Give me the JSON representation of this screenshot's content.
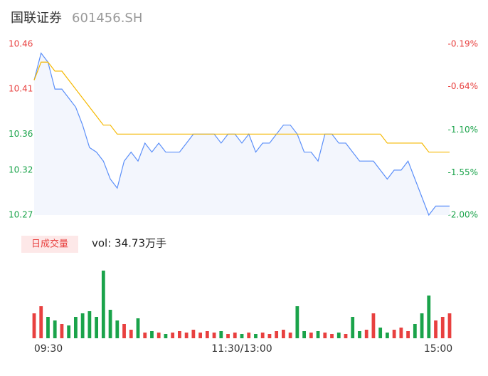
{
  "chart_data": {
    "type": "line",
    "title": "国联证券",
    "subtitle": "601456.SH",
    "categories": [
      "09:30",
      null,
      null,
      null,
      null,
      null,
      null,
      null,
      null,
      null,
      null,
      null,
      null,
      null,
      null,
      null,
      null,
      null,
      null,
      null,
      null,
      null,
      null,
      null,
      null,
      null,
      null,
      null,
      null,
      null,
      "11:30/13:00",
      null,
      null,
      null,
      null,
      null,
      null,
      null,
      null,
      null,
      null,
      null,
      null,
      null,
      null,
      null,
      null,
      null,
      null,
      null,
      null,
      null,
      null,
      null,
      null,
      null,
      null,
      null,
      null,
      null,
      "15:00"
    ],
    "series": [
      {
        "name": "price",
        "color": "#5b8ff9",
        "values": [
          10.42,
          10.45,
          10.44,
          10.41,
          10.41,
          10.4,
          10.39,
          10.37,
          10.345,
          10.34,
          10.33,
          10.31,
          10.3,
          10.33,
          10.34,
          10.33,
          10.35,
          10.34,
          10.35,
          10.34,
          10.34,
          10.34,
          10.35,
          10.36,
          10.36,
          10.36,
          10.36,
          10.35,
          10.36,
          10.36,
          10.35,
          10.36,
          10.34,
          10.35,
          10.35,
          10.36,
          10.37,
          10.37,
          10.36,
          10.34,
          10.34,
          10.33,
          10.36,
          10.36,
          10.35,
          10.35,
          10.34,
          10.33,
          10.33,
          10.33,
          10.32,
          10.31,
          10.32,
          10.32,
          10.33,
          10.31,
          10.29,
          10.27,
          10.28,
          10.28,
          10.28
        ]
      },
      {
        "name": "average",
        "color": "#f5b800",
        "values": [
          10.42,
          10.44,
          10.44,
          10.43,
          10.43,
          10.42,
          10.41,
          10.4,
          10.39,
          10.38,
          10.37,
          10.37,
          10.36,
          10.36,
          10.36,
          10.36,
          10.36,
          10.36,
          10.36,
          10.36,
          10.36,
          10.36,
          10.36,
          10.36,
          10.36,
          10.36,
          10.36,
          10.36,
          10.36,
          10.36,
          10.36,
          10.36,
          10.36,
          10.36,
          10.36,
          10.36,
          10.36,
          10.36,
          10.36,
          10.36,
          10.36,
          10.36,
          10.36,
          10.36,
          10.36,
          10.36,
          10.36,
          10.36,
          10.36,
          10.36,
          10.36,
          10.35,
          10.35,
          10.35,
          10.35,
          10.35,
          10.35,
          10.34,
          10.34,
          10.34,
          10.34
        ]
      }
    ],
    "ylim": [
      10.27,
      10.46
    ],
    "yticks": [
      10.46,
      10.41,
      10.36,
      10.32,
      10.27
    ],
    "y2lim": [
      -2.0,
      -0.19
    ],
    "y2ticks": [
      {
        "value": -0.19,
        "label": "-0.19%"
      },
      {
        "value": -0.64,
        "label": "-0.64%"
      },
      {
        "value": -1.1,
        "label": "-1.10%"
      },
      {
        "value": -1.55,
        "label": "-1.55%"
      },
      {
        "value": -2.0,
        "label": "-2.00%"
      }
    ],
    "volume": {
      "label": "日成交量",
      "summary": "vol: 34.73万手",
      "up_color": "#e8403f",
      "down_color": "#1aa34a",
      "ylim": [
        0,
        100
      ],
      "values": [
        35,
        45,
        30,
        25,
        20,
        18,
        30,
        35,
        38,
        30,
        95,
        40,
        25,
        20,
        12,
        28,
        8,
        10,
        8,
        6,
        8,
        10,
        8,
        12,
        8,
        10,
        8,
        10,
        6,
        8,
        6,
        8,
        6,
        8,
        6,
        10,
        12,
        8,
        45,
        10,
        8,
        10,
        8,
        6,
        8,
        6,
        30,
        10,
        12,
        35,
        15,
        8,
        12,
        15,
        10,
        20,
        35,
        60,
        25,
        30,
        35
      ]
    }
  }
}
